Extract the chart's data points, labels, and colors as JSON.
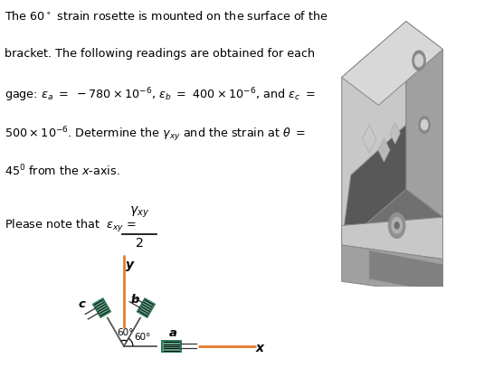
{
  "bg_color": "#ffffff",
  "text_color": "#000000",
  "orange_color": "#e8792a",
  "green_fill": "#5faa8c",
  "green_border": "#2e7a58",
  "line_color": "#555555",
  "wire_color": "#333333",
  "label_a": "a",
  "label_b": "b",
  "label_c": "c",
  "label_x": "x",
  "label_y": "y",
  "angle1": "60°",
  "angle2": "60°",
  "fig_width": 5.35,
  "fig_height": 4.07,
  "dpi": 100
}
